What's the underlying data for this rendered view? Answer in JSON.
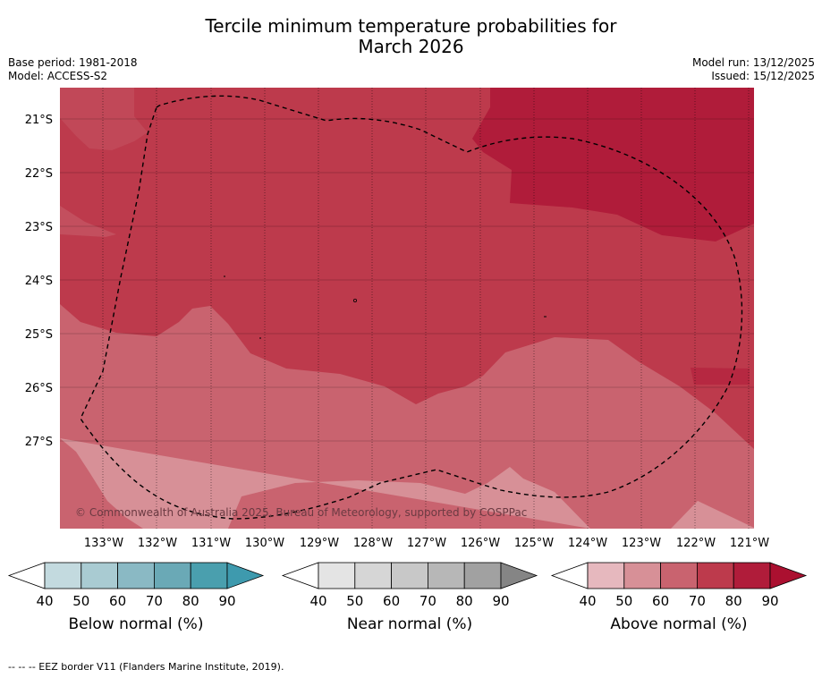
{
  "title_line1": "Tercile minimum temperature probabilities for",
  "title_line2": "March 2026",
  "base_period": "Base period: 1981-2018",
  "model": "Model: ACCESS-S2",
  "model_run": "Model run: 13/12/2025",
  "issued": "Issued: 15/12/2025",
  "copyright": "© Commonwealth of Australia 2025, Bureau of Meteorology, supported by COSPPac",
  "lat_labels": [
    "21°S",
    "22°S",
    "23°S",
    "24°S",
    "25°S",
    "26°S",
    "27°S"
  ],
  "lon_labels": [
    "133°W",
    "132°W",
    "131°W",
    "130°W",
    "129°W",
    "128°W",
    "127°W",
    "126°W",
    "125°W",
    "124°W",
    "123°W",
    "122°W",
    "121°W"
  ],
  "map_colors": {
    "above_90": "#b01c3a",
    "above_80": "#bd3a4c",
    "above_70": "#c9636f",
    "above_60": "#d79097",
    "border": "#000000"
  },
  "colorbars": [
    {
      "title": "Below normal (%)",
      "ticks": [
        "40",
        "50",
        "60",
        "70",
        "80",
        "90"
      ],
      "colors": [
        "#c3dadf",
        "#a9cbd2",
        "#8ab9c4",
        "#6aa9b6",
        "#4a9fae",
        "#3e9aae"
      ]
    },
    {
      "title": "Near normal (%)",
      "ticks": [
        "40",
        "50",
        "60",
        "70",
        "80",
        "90"
      ],
      "colors": [
        "#e4e4e4",
        "#d6d6d6",
        "#c8c8c8",
        "#b7b7b7",
        "#a1a1a1",
        "#858585"
      ]
    },
    {
      "title": "Above normal (%)",
      "ticks": [
        "40",
        "50",
        "60",
        "70",
        "80",
        "90"
      ],
      "colors": [
        "#e6b8be",
        "#d79097",
        "#c9636f",
        "#bd3a4c",
        "#b01c3a",
        "#ab1030"
      ]
    }
  ],
  "footnote": "--  --  -- EEZ border V11 (Flanders Marine Institute, 2019)."
}
